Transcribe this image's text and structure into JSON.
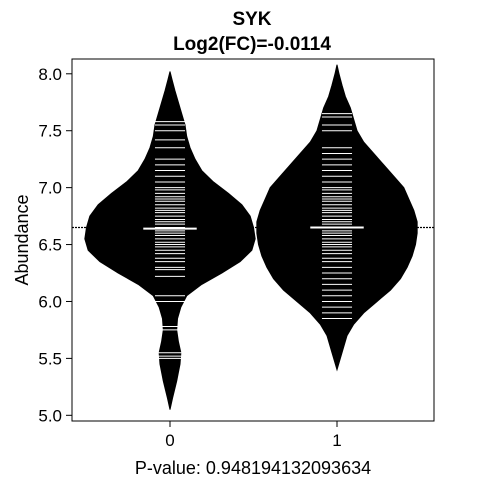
{
  "chart_data": {
    "type": "beanplot",
    "title": "SYK",
    "subtitle": "Log2(FC)=-0.0114",
    "xlabel": "P-value: 0.948194132093634",
    "ylabel": "Abundance",
    "categories": [
      "0",
      "1"
    ],
    "y_ticks": [
      "5.0",
      "5.5",
      "6.0",
      "6.5",
      "7.0",
      "7.5",
      "8.0"
    ],
    "ylim": [
      4.95,
      8.13
    ],
    "xlim": [
      0.4,
      2.6
    ],
    "overall_line": 6.65,
    "grid": false,
    "legend": "none",
    "colors": {
      "bean_fill": "#000000",
      "bean_lines": "#ffffff",
      "overall_line": "#000000",
      "background": "#ffffff"
    },
    "series": [
      {
        "x": 1,
        "mean": 6.64,
        "min": 5.05,
        "max": 8.02,
        "density": [
          [
            5.05,
            0.0
          ],
          [
            5.15,
            0.015
          ],
          [
            5.3,
            0.04
          ],
          [
            5.45,
            0.06
          ],
          [
            5.55,
            0.065
          ],
          [
            5.65,
            0.05
          ],
          [
            5.75,
            0.04
          ],
          [
            5.85,
            0.045
          ],
          [
            5.95,
            0.065
          ],
          [
            6.05,
            0.1
          ],
          [
            6.15,
            0.19
          ],
          [
            6.25,
            0.31
          ],
          [
            6.35,
            0.42
          ],
          [
            6.45,
            0.49
          ],
          [
            6.55,
            0.51
          ],
          [
            6.65,
            0.5
          ],
          [
            6.75,
            0.48
          ],
          [
            6.85,
            0.43
          ],
          [
            6.95,
            0.35
          ],
          [
            7.05,
            0.26
          ],
          [
            7.15,
            0.19
          ],
          [
            7.25,
            0.15
          ],
          [
            7.35,
            0.12
          ],
          [
            7.45,
            0.1
          ],
          [
            7.55,
            0.09
          ],
          [
            7.65,
            0.07
          ],
          [
            7.75,
            0.05
          ],
          [
            7.85,
            0.03
          ],
          [
            7.95,
            0.012
          ],
          [
            8.02,
            0.0
          ]
        ],
        "points": [
          5.5,
          5.52,
          5.55,
          5.75,
          5.78,
          6.0,
          6.05,
          6.22,
          6.28,
          6.3,
          6.35,
          6.38,
          6.42,
          6.45,
          6.48,
          6.5,
          6.52,
          6.55,
          6.58,
          6.6,
          6.62,
          6.65,
          6.68,
          6.7,
          6.72,
          6.75,
          6.78,
          6.8,
          6.82,
          6.85,
          6.88,
          6.9,
          6.92,
          6.95,
          6.98,
          7.0,
          7.05,
          7.1,
          7.15,
          7.2,
          7.25,
          7.35,
          7.42,
          7.5,
          7.55,
          7.58
        ]
      },
      {
        "x": 2,
        "mean": 6.65,
        "min": 5.4,
        "max": 8.08,
        "density": [
          [
            5.4,
            0.0
          ],
          [
            5.55,
            0.03
          ],
          [
            5.7,
            0.06
          ],
          [
            5.8,
            0.1
          ],
          [
            5.9,
            0.16
          ],
          [
            6.0,
            0.24
          ],
          [
            6.1,
            0.32
          ],
          [
            6.2,
            0.38
          ],
          [
            6.3,
            0.42
          ],
          [
            6.4,
            0.45
          ],
          [
            6.5,
            0.47
          ],
          [
            6.6,
            0.48
          ],
          [
            6.7,
            0.48
          ],
          [
            6.8,
            0.46
          ],
          [
            6.9,
            0.43
          ],
          [
            7.0,
            0.4
          ],
          [
            7.1,
            0.34
          ],
          [
            7.2,
            0.28
          ],
          [
            7.3,
            0.22
          ],
          [
            7.4,
            0.16
          ],
          [
            7.5,
            0.12
          ],
          [
            7.6,
            0.1
          ],
          [
            7.7,
            0.08
          ],
          [
            7.8,
            0.05
          ],
          [
            7.9,
            0.03
          ],
          [
            8.0,
            0.012
          ],
          [
            8.08,
            0.0
          ]
        ],
        "points": [
          5.85,
          5.9,
          5.95,
          6.0,
          6.05,
          6.1,
          6.15,
          6.2,
          6.25,
          6.3,
          6.35,
          6.38,
          6.42,
          6.45,
          6.48,
          6.5,
          6.52,
          6.55,
          6.58,
          6.6,
          6.62,
          6.65,
          6.68,
          6.7,
          6.72,
          6.75,
          6.78,
          6.8,
          6.82,
          6.85,
          6.88,
          6.9,
          6.92,
          6.95,
          6.98,
          7.0,
          7.05,
          7.1,
          7.15,
          7.2,
          7.25,
          7.3,
          7.35,
          7.5,
          7.55,
          7.62,
          7.65
        ]
      }
    ]
  }
}
